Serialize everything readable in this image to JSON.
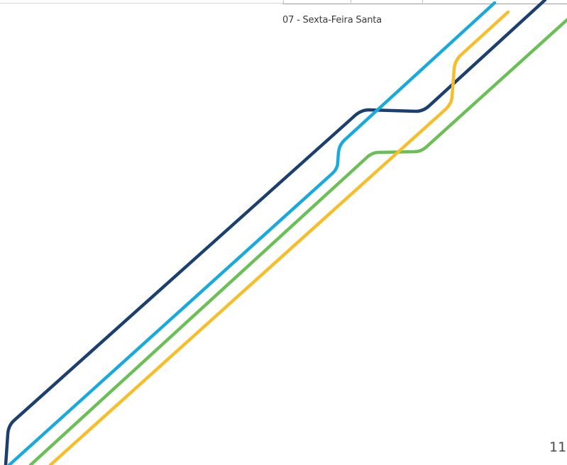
{
  "note": {
    "holiday": "07 - Sexta-Feira Santa"
  },
  "footer": {
    "page_number": "11"
  },
  "decor": {
    "line_colors": {
      "navy": "#1b3f6e",
      "cyan": "#1aa9dd",
      "green": "#6cbf57",
      "yellow": "#f6be2a"
    }
  }
}
